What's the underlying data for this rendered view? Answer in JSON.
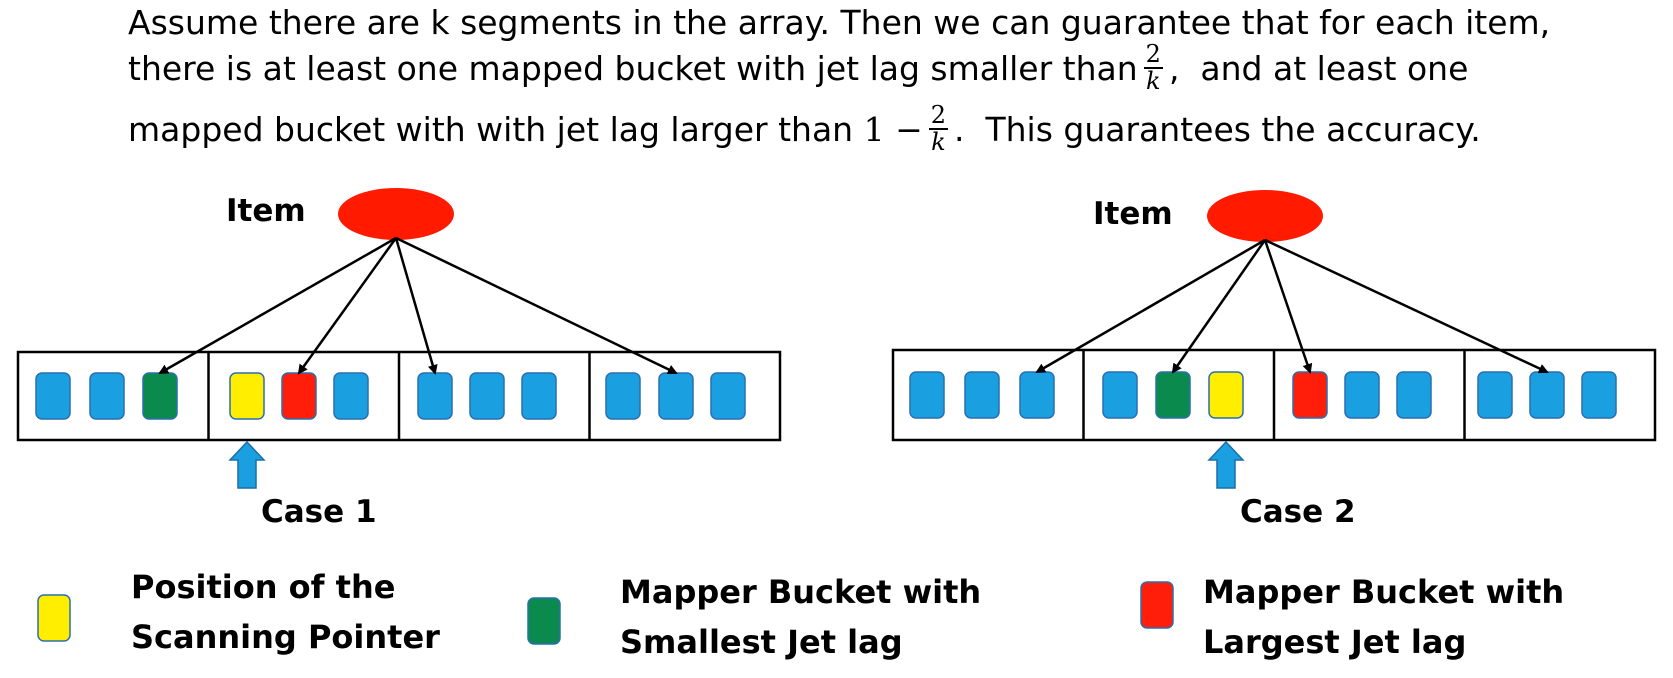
{
  "paragraph": {
    "line1": "Assume there are k segments in the array. Then we can guarantee that for each item,",
    "line2_a": "there is at least one mapped bucket with jet lag smaller than",
    "line2_b": ",  and at least one",
    "line3_a": "mapped bucket with with jet lag larger than",
    "line3_b": ".  This guarantees the accuracy.",
    "frac_num": "2",
    "frac_den": "k",
    "one_minus": "1 −"
  },
  "cases": [
    {
      "item_label": "Item",
      "caption": "Case 1",
      "segments": [
        [
          "blue",
          "blue",
          "green"
        ],
        [
          "yellow",
          "red",
          "blue"
        ],
        [
          "blue",
          "blue",
          "blue"
        ],
        [
          "blue",
          "blue",
          "blue"
        ]
      ],
      "pointer_at": [
        1,
        0
      ],
      "arrow_targets": [
        [
          0,
          2
        ],
        [
          1,
          1
        ],
        [
          2,
          0
        ],
        [
          3,
          1
        ]
      ]
    },
    {
      "item_label": "Item",
      "caption": "Case 2",
      "segments": [
        [
          "blue",
          "blue",
          "blue"
        ],
        [
          "blue",
          "green",
          "yellow"
        ],
        [
          "red",
          "blue",
          "blue"
        ],
        [
          "blue",
          "blue",
          "blue"
        ]
      ],
      "pointer_at": [
        1,
        2
      ],
      "arrow_targets": [
        [
          0,
          2
        ],
        [
          1,
          1
        ],
        [
          2,
          0
        ],
        [
          3,
          1
        ]
      ]
    }
  ],
  "legend": [
    {
      "color": "yellow",
      "line1": "Position of the",
      "line2": "Scanning Pointer"
    },
    {
      "color": "green",
      "line1": "Mapper Bucket with",
      "line2": "Smallest Jet lag"
    },
    {
      "color": "red",
      "line1": "Mapper Bucket with",
      "line2": "Largest Jet lag"
    }
  ],
  "colors": {
    "blue": "#1aa0e0",
    "green": "#0b8a4e",
    "yellow": "#ffee00",
    "red": "#ff1e0a",
    "item": "#ff1a00",
    "pointer": "#1aa0e0",
    "bucket_border": "#2a6fb0"
  }
}
